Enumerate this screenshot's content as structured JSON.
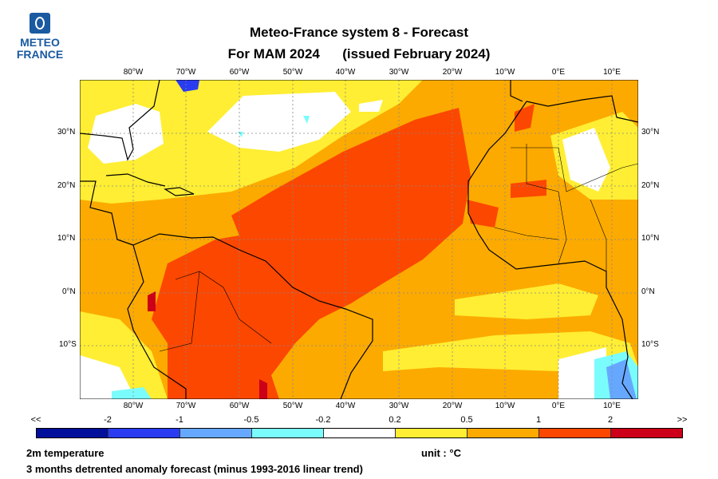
{
  "logo": {
    "line1": "METEO",
    "line2": "FRANCE"
  },
  "title": {
    "line1": "Meteo-France system 8  -  Forecast",
    "line2": "For MAM 2024      (issued February 2024)"
  },
  "map": {
    "lon_ticks": [
      "80°W",
      "70°W",
      "60°W",
      "50°W",
      "40°W",
      "30°W",
      "20°W",
      "10°W",
      "0°E",
      "10°E"
    ],
    "lat_ticks": [
      "30°N",
      "20°N",
      "10°N",
      "0°N",
      "10°S"
    ],
    "extent": {
      "lon": [
        -90,
        15
      ],
      "lat": [
        -20,
        40
      ]
    },
    "grid": true
  },
  "colorbar": {
    "labels": [
      "<<",
      "-2",
      "-1",
      "-0.5",
      "-0.2",
      "0.2",
      "0.5",
      "1",
      "2",
      ">>"
    ],
    "colors": [
      "#00109a",
      "#2a3cf0",
      "#66a8ff",
      "#7bfcfc",
      "#ffffff",
      "#ffee33",
      "#fcaa00",
      "#fc4700",
      "#cc0018"
    ]
  },
  "footer": {
    "variable": "2m temperature",
    "unit": "unit : °C",
    "description": "3 months detrented anomaly forecast (minus 1993-2016 linear trend)"
  }
}
